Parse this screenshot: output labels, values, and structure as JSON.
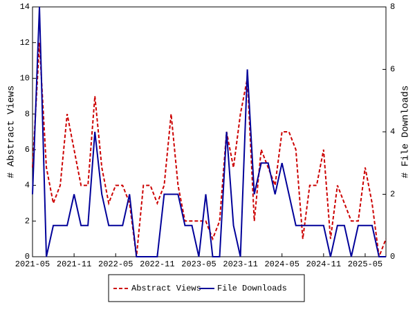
{
  "chart_data": {
    "type": "line",
    "x": [
      "2021-05",
      "2021-06",
      "2021-07",
      "2021-08",
      "2021-09",
      "2021-10",
      "2021-11",
      "2021-12",
      "2022-01",
      "2022-02",
      "2022-03",
      "2022-04",
      "2022-05",
      "2022-06",
      "2022-07",
      "2022-08",
      "2022-09",
      "2022-10",
      "2022-11",
      "2022-12",
      "2023-01",
      "2023-02",
      "2023-03",
      "2023-04",
      "2023-05",
      "2023-06",
      "2023-07",
      "2023-08",
      "2023-09",
      "2023-10",
      "2023-11",
      "2023-12",
      "2024-01",
      "2024-02",
      "2024-03",
      "2024-04",
      "2024-05",
      "2024-06",
      "2024-07",
      "2024-08",
      "2024-09",
      "2024-10",
      "2024-11",
      "2024-12",
      "2025-01",
      "2025-02",
      "2025-03",
      "2025-04",
      "2025-05",
      "2025-06",
      "2025-07",
      "2025-08"
    ],
    "series": [
      {
        "name": "Abstract Views",
        "color": "#cc0000",
        "dash": true,
        "values": [
          5,
          12,
          5,
          3,
          4,
          8,
          6,
          4,
          4,
          9,
          5,
          3,
          4,
          4,
          3,
          0,
          4,
          4,
          3,
          4,
          8,
          4,
          2,
          2,
          2,
          2,
          1,
          2,
          7,
          5,
          8,
          10,
          2,
          6,
          5,
          4,
          7,
          7,
          6,
          1,
          4,
          4,
          6,
          1,
          4,
          3,
          2,
          2,
          5,
          3,
          0,
          1
        ]
      },
      {
        "name": "File Downloads",
        "color": "#000099",
        "axis": "y2",
        "values": [
          2,
          8,
          0,
          1,
          1,
          1,
          2,
          1,
          1,
          4,
          2,
          1,
          1,
          1,
          2,
          0,
          0,
          0,
          0,
          2,
          2,
          2,
          1,
          1,
          0,
          2,
          0,
          0,
          4,
          1,
          0,
          6,
          2,
          3,
          3,
          2,
          3,
          2,
          1,
          1,
          1,
          1,
          1,
          0,
          1,
          1,
          0,
          1,
          1,
          1,
          0,
          0
        ]
      }
    ],
    "ylabel": "# Abstract Views",
    "y2label": "# File Downloads",
    "xlim": [
      "2021-05",
      "2025-08"
    ],
    "xticks": [
      "2021-05",
      "2021-11",
      "2022-05",
      "2022-11",
      "2023-05",
      "2023-11",
      "2024-05",
      "2024-11",
      "2025-05"
    ],
    "ylim": [
      0,
      14
    ],
    "yticks": [
      0,
      2,
      4,
      6,
      8,
      10,
      12,
      14
    ],
    "y2lim": [
      0,
      8
    ],
    "y2ticks": [
      0,
      2,
      4,
      6,
      8
    ]
  }
}
